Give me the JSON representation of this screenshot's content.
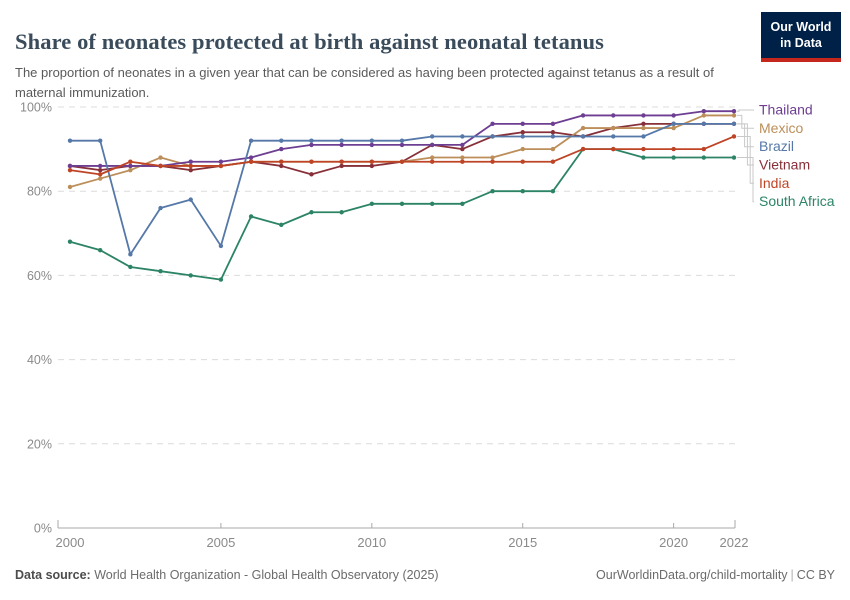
{
  "header": {
    "title": "Share of neonates protected at birth against neonatal tetanus",
    "subtitle": "The proportion of neonates in a given year that can be considered as having been protected against tetanus as a result of maternal immunization.",
    "logo": {
      "line1": "Our World",
      "line2": "in Data"
    }
  },
  "footer": {
    "source_label": "Data source:",
    "source_text": " World Health Organization - Global Health Observatory (2025)",
    "link_text": "OurWorldinData.org/child-mortality",
    "separator": "|",
    "license": "CC BY"
  },
  "colors": {
    "title_text": "#3a4c5c",
    "subtitle_text": "#5a5a5a",
    "axis_text": "#8a8a8a",
    "gridline": "#dcdcdc",
    "axis_line": "#a8a8a8",
    "legend_connector": "#c9c9c9",
    "logo_bg": "#002147",
    "logo_stripe": "#C5271D"
  },
  "chart_data": {
    "type": "line",
    "title": "Share of neonates protected at birth against neonatal tetanus",
    "xlabel": "",
    "ylabel": "",
    "xlim": [
      2000,
      2022
    ],
    "ylim": [
      0,
      100
    ],
    "grid": true,
    "legend_position": "right",
    "marker": "circle",
    "x": [
      2000,
      2001,
      2002,
      2003,
      2004,
      2005,
      2006,
      2007,
      2008,
      2009,
      2010,
      2011,
      2012,
      2013,
      2014,
      2015,
      2016,
      2017,
      2018,
      2019,
      2020,
      2021,
      2022
    ],
    "x_ticks": [
      {
        "v": 2000,
        "label": "2000"
      },
      {
        "v": 2005,
        "label": "2005"
      },
      {
        "v": 2010,
        "label": "2010"
      },
      {
        "v": 2015,
        "label": "2015"
      },
      {
        "v": 2020,
        "label": "2020"
      },
      {
        "v": 2022,
        "label": "2022"
      }
    ],
    "y_ticks": [
      {
        "v": 0,
        "label": "0%"
      },
      {
        "v": 20,
        "label": "20%"
      },
      {
        "v": 40,
        "label": "40%"
      },
      {
        "v": 60,
        "label": "60%"
      },
      {
        "v": 80,
        "label": "80%"
      },
      {
        "v": 100,
        "label": "100%"
      }
    ],
    "series": [
      {
        "name": "Thailand",
        "color": "#6D3E91",
        "values": [
          86,
          86,
          86,
          86,
          87,
          87,
          88,
          90,
          91,
          91,
          91,
          91,
          91,
          91,
          96,
          96,
          96,
          98,
          98,
          98,
          98,
          99,
          99
        ]
      },
      {
        "name": "Mexico",
        "color": "#BC8E5A",
        "values": [
          81,
          83,
          85,
          88,
          86,
          86,
          87,
          87,
          87,
          87,
          87,
          87,
          88,
          88,
          88,
          90,
          90,
          95,
          95,
          95,
          95,
          98,
          98
        ]
      },
      {
        "name": "Brazil",
        "color": "#5578A8",
        "values": [
          92,
          92,
          65,
          76,
          78,
          67,
          92,
          92,
          92,
          92,
          92,
          92,
          93,
          93,
          93,
          93,
          93,
          93,
          93,
          93,
          96,
          96,
          96
        ]
      },
      {
        "name": "Vietnam",
        "color": "#883039",
        "values": [
          86,
          85,
          86,
          86,
          85,
          86,
          87,
          86,
          84,
          86,
          86,
          87,
          91,
          90,
          93,
          94,
          94,
          93,
          95,
          96,
          96,
          96,
          96
        ]
      },
      {
        "name": "India",
        "color": "#BE4425",
        "values": [
          85,
          84,
          87,
          86,
          86,
          86,
          87,
          87,
          87,
          87,
          87,
          87,
          87,
          87,
          87,
          87,
          87,
          90,
          90,
          90,
          90,
          90,
          93
        ]
      },
      {
        "name": "South Africa",
        "color": "#2C8465",
        "values": [
          68,
          66,
          62,
          61,
          60,
          59,
          74,
          72,
          75,
          75,
          77,
          77,
          77,
          77,
          80,
          80,
          80,
          90,
          90,
          88,
          88,
          88,
          88
        ]
      }
    ]
  }
}
